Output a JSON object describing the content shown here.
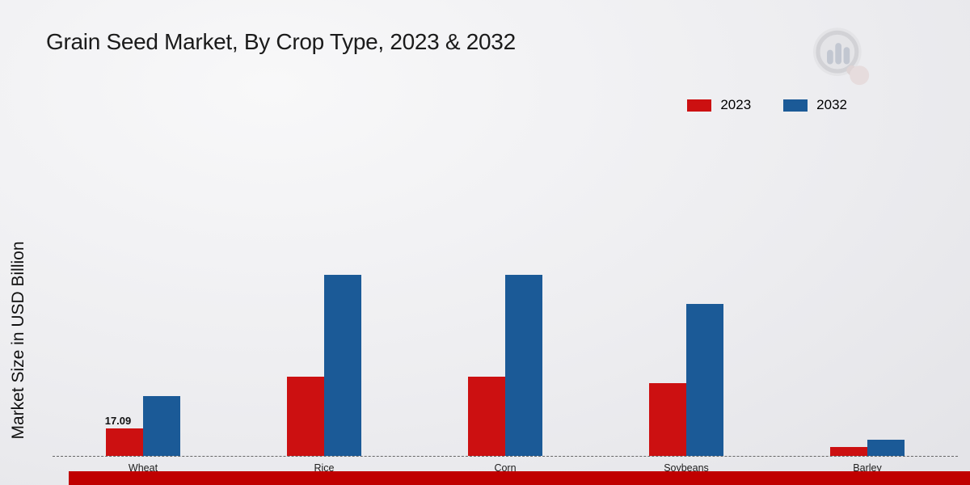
{
  "page": {
    "title": "Grain Seed Market, By Crop Type, 2023 & 2032",
    "y_axis_label": "Market Size in USD Billion",
    "footer_strip_color": "#c00000",
    "accent_red": "#cc1011",
    "accent_blue": "#1b5a97"
  },
  "chart_data": {
    "type": "bar",
    "title": "Grain Seed Market, By Crop Type, 2023 & 2032",
    "xlabel": "",
    "ylabel": "Market Size in USD Billion",
    "categories": [
      "Wheat",
      "Rice",
      "Corn",
      "Soybeans",
      "Barley"
    ],
    "series": [
      {
        "name": "2023",
        "color": "#cc1011",
        "values": [
          17.09,
          49,
          49,
          45,
          5.5
        ],
        "value_labels": [
          "17.09",
          null,
          null,
          null,
          null
        ]
      },
      {
        "name": "2032",
        "color": "#1b5a97",
        "values": [
          37,
          112,
          112,
          94,
          10
        ],
        "value_labels": [
          null,
          null,
          null,
          null,
          null
        ]
      }
    ],
    "ylim": [
      0,
      225
    ],
    "grid": false,
    "legend_position": "top-right",
    "baseline_style": "dashed",
    "annotations": [
      {
        "text": "17.09",
        "category": "Wheat",
        "series": "2023",
        "position": "above-bar"
      }
    ]
  }
}
